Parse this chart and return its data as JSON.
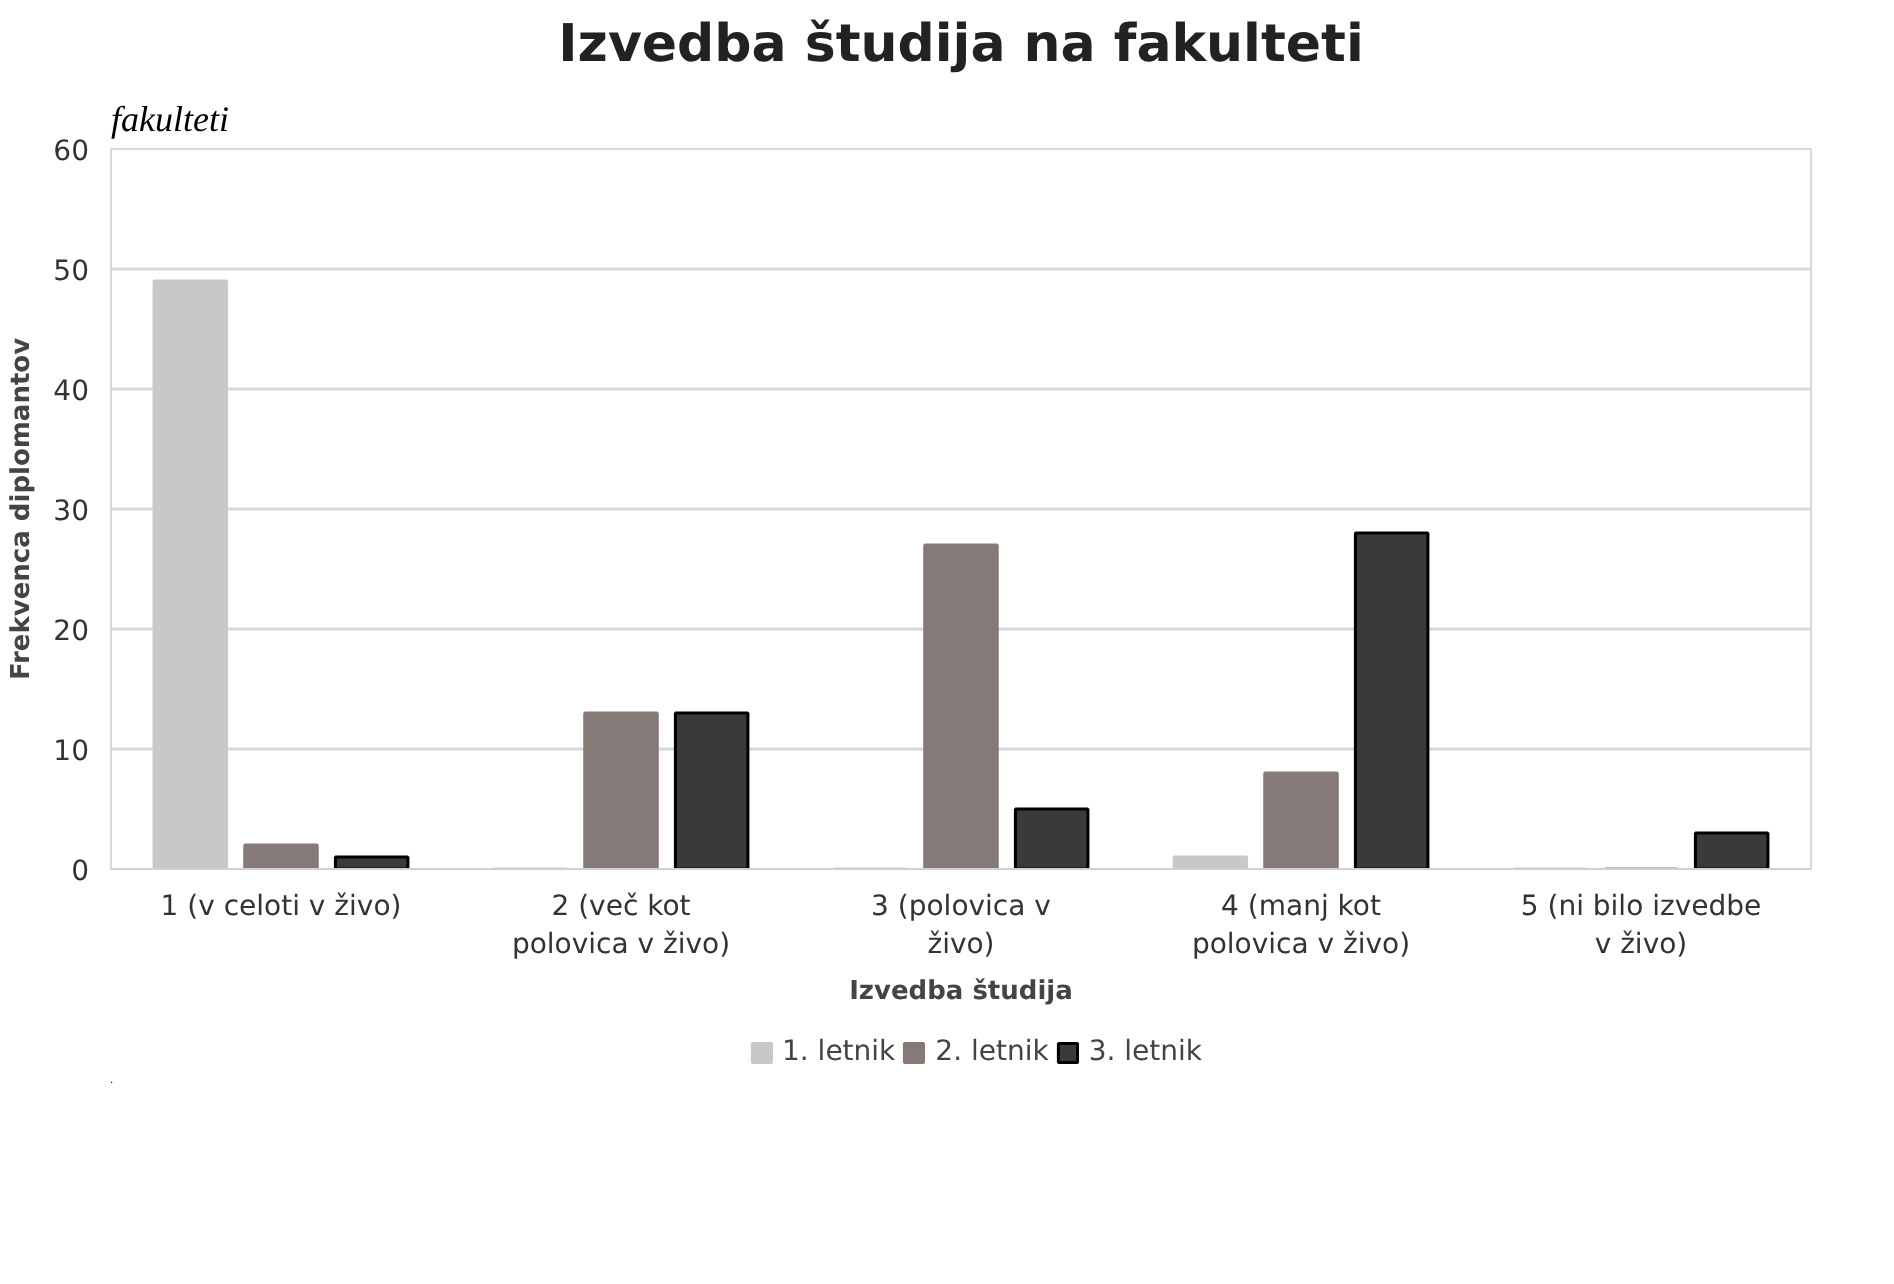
{
  "chart_data": {
    "type": "bar",
    "title": "Izvedba študija na fakulteti",
    "xlabel": "Izvedba študija",
    "ylabel": "Frekvenca diplomantov",
    "categories": [
      "1 (v celoti v živo)",
      "2 (več kot\npolovica v živo)",
      "3 (polovica v\nživo)",
      "4 (manj kot\npolovica v živo)",
      "5 (ni bilo izvedbe\nv živo)"
    ],
    "series": [
      {
        "name": "1. letnik",
        "color": "#c8c8c8",
        "values": [
          49,
          0,
          0,
          1,
          0
        ]
      },
      {
        "name": "2. letnik",
        "color": "#857a78",
        "values": [
          2,
          13,
          27,
          8,
          0
        ]
      },
      {
        "name": "3. letnik",
        "color": "#3a3a3c",
        "values": [
          1,
          13,
          5,
          28,
          3
        ]
      }
    ],
    "ylim": [
      0,
      60
    ],
    "yticks": [
      0,
      10,
      20,
      30,
      40,
      50,
      60
    ],
    "grid": "y",
    "legend": "bottom",
    "annotations": [
      "fakulteti"
    ]
  }
}
